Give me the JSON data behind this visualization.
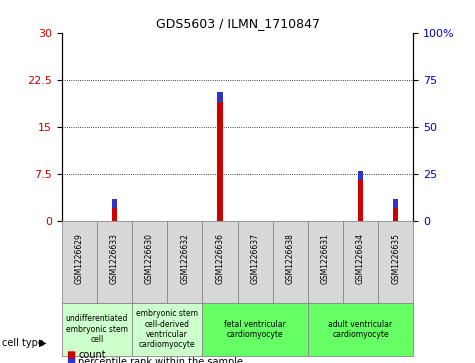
{
  "title": "GDS5603 / ILMN_1710847",
  "samples": [
    "GSM1226629",
    "GSM1226633",
    "GSM1226630",
    "GSM1226632",
    "GSM1226636",
    "GSM1226637",
    "GSM1226638",
    "GSM1226631",
    "GSM1226634",
    "GSM1226635"
  ],
  "count_values": [
    0,
    2,
    0,
    0,
    19,
    0,
    0,
    0,
    6.5,
    2
  ],
  "percentile_values": [
    0,
    1.5,
    0,
    0,
    1.5,
    0,
    0,
    0,
    1.5,
    1.5
  ],
  "ylim_left": [
    0,
    30
  ],
  "ylim_right": [
    0,
    100
  ],
  "yticks_left": [
    0,
    7.5,
    15,
    22.5,
    30
  ],
  "yticks_right": [
    0,
    25,
    50,
    75,
    100
  ],
  "cell_type_groups": [
    {
      "label": "undifferentiated\nembryonic stem\ncell",
      "start": 0,
      "end": 1,
      "color": "#ccffcc"
    },
    {
      "label": "embryonic stem\ncell-derived\nventricular\ncardiomyocyte",
      "start": 2,
      "end": 3,
      "color": "#ccffcc"
    },
    {
      "label": "fetal ventricular\ncardiomyocyte",
      "start": 4,
      "end": 6,
      "color": "#66ff66"
    },
    {
      "label": "adult ventricular\ncardiomyocyte",
      "start": 7,
      "end": 9,
      "color": "#66ff66"
    }
  ],
  "bar_width": 0.15,
  "count_color": "#cc0000",
  "percentile_color": "#3333cc",
  "tick_label_color_left": "#cc0000",
  "tick_label_color_right": "#0000cc",
  "legend_count_label": "count",
  "legend_percentile_label": "percentile rank within the sample",
  "cell_type_label": "cell type",
  "background_color": "#ffffff",
  "sample_box_color": "#d8d8d8",
  "label_area_color_light": "#ccffcc",
  "label_area_color_dark": "#66ff66"
}
